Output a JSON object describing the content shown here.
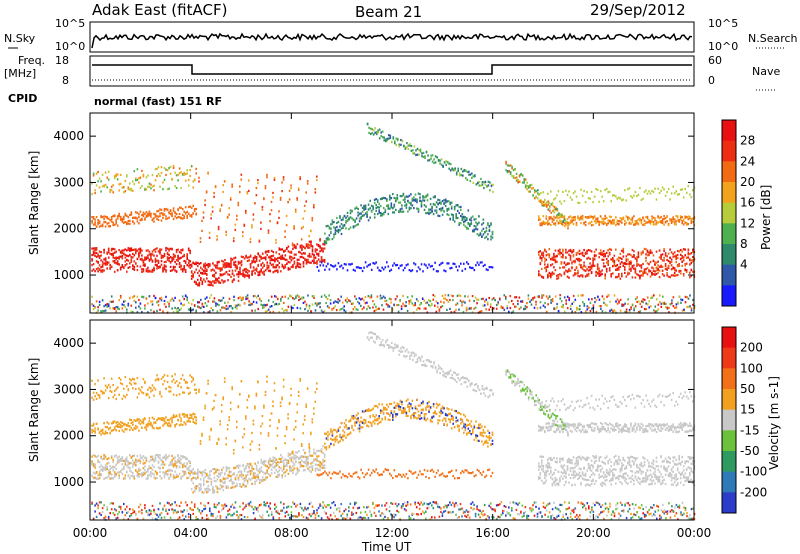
{
  "header": {
    "title": "Adak East (fitACF)",
    "beam": "Beam 21",
    "date": "29/Sep/2012"
  },
  "side_labels": {
    "nsky": "N.Sky",
    "nsearch": "N.Search",
    "freq_line1": "Freq.",
    "freq_line2": "[MHz]",
    "nave": "Nave",
    "cpid": "CPID",
    "cpid_text": "normal (fast) 151 RF"
  },
  "noise_axis": {
    "left_ticks": [
      "10^5",
      "10^0"
    ],
    "right_ticks": [
      "10^5",
      "10^0"
    ]
  },
  "freq_axis": {
    "left_ticks": [
      "18",
      "8"
    ],
    "right_ticks": [
      "60",
      "0"
    ]
  },
  "chart_data": [
    {
      "type": "heatmap",
      "title": "",
      "ylabel": "Slant Range [km]",
      "xlabel": "Time UT",
      "colorbar_label": "Power [dB]",
      "ylim": [
        180,
        4500
      ],
      "y_ticks": [
        1000,
        2000,
        3000,
        4000
      ],
      "x_tick_labels": [
        "00:00",
        "04:00",
        "08:00",
        "12:00",
        "16:00",
        "20:00",
        "00:00"
      ],
      "x_ticks_hours": [
        0,
        4,
        8,
        12,
        16,
        20,
        24
      ],
      "colorbar_ticks": [
        4,
        8,
        12,
        16,
        20,
        24,
        28
      ],
      "colors": [
        "#1a1aff",
        "#2f58a8",
        "#2e8a6a",
        "#4fb050",
        "#b6cc3a",
        "#f2a21c",
        "#f26a12",
        "#ee2e12",
        "#e81010"
      ]
    },
    {
      "type": "heatmap",
      "title": "",
      "ylabel": "Slant Range [km]",
      "xlabel": "Time UT",
      "colorbar_label": "Velocity [m s-1]",
      "ylim": [
        180,
        4500
      ],
      "y_ticks": [
        1000,
        2000,
        3000,
        4000
      ],
      "x_tick_labels": [
        "00:00",
        "04:00",
        "08:00",
        "12:00",
        "16:00",
        "20:00",
        "00:00"
      ],
      "x_ticks_hours": [
        0,
        4,
        8,
        12,
        16,
        20,
        24
      ],
      "colorbar_ticks": [
        "200",
        "100",
        "50",
        "15",
        "-15",
        "-50",
        "-100",
        "-200"
      ],
      "colors": [
        "#2a3cc8",
        "#2e7ab8",
        "#2e9a60",
        "#6ac23a",
        "#c8c8c8",
        "#f2a020",
        "#f27018",
        "#ee3a18",
        "#e81010"
      ]
    }
  ]
}
